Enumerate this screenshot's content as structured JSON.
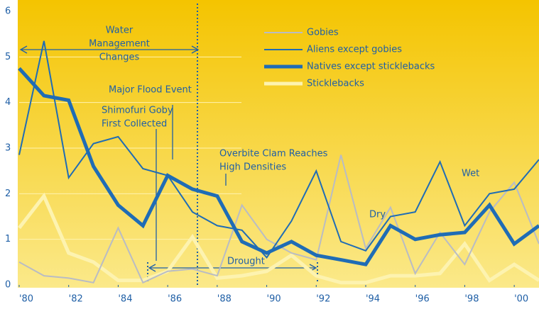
{
  "chart_data": {
    "type": "line",
    "x": [
      1980,
      1981,
      1982,
      1983,
      1984,
      1985,
      1986,
      1987,
      1988,
      1989,
      1990,
      1991,
      1992,
      1993,
      1994,
      1995,
      1996,
      1997,
      1998,
      1999,
      2000,
      2001
    ],
    "xlim": [
      1980,
      2001
    ],
    "xticks": [
      {
        "value": 1980,
        "label": "'80"
      },
      {
        "value": 1982,
        "label": "'82"
      },
      {
        "value": 1984,
        "label": "'84"
      },
      {
        "value": 1986,
        "label": "'86"
      },
      {
        "value": 1988,
        "label": "'88"
      },
      {
        "value": 1990,
        "label": "'90"
      },
      {
        "value": 1992,
        "label": "'92"
      },
      {
        "value": 1994,
        "label": "'94"
      },
      {
        "value": 1996,
        "label": "'96"
      },
      {
        "value": 1998,
        "label": "'98"
      },
      {
        "value": 2000,
        "label": "'00"
      }
    ],
    "ylim": [
      0,
      6
    ],
    "yticks": [
      0,
      1,
      2,
      3,
      4,
      5,
      6
    ],
    "grid": true,
    "series": [
      {
        "name": "Gobies",
        "color": "#b9bcc4",
        "width": 2,
        "values": [
          0.5,
          0.2,
          0.15,
          0.05,
          1.25,
          0.05,
          0.3,
          0.35,
          0.2,
          1.75,
          1.0,
          0.7,
          0.55,
          2.85,
          0.8,
          1.7,
          0.25,
          1.15,
          0.45,
          1.6,
          2.25,
          0.9
        ]
      },
      {
        "name": "Aliens except gobies",
        "color": "#1f6cb5",
        "width": 2,
        "values": [
          2.85,
          5.35,
          2.35,
          3.1,
          3.25,
          2.55,
          2.4,
          1.6,
          1.3,
          1.2,
          0.6,
          1.4,
          2.5,
          0.95,
          0.75,
          1.5,
          1.6,
          2.7,
          1.3,
          2.0,
          2.1,
          2.75
        ]
      },
      {
        "name": "Natives except sticklebacks",
        "color": "#1f6cb5",
        "width": 5,
        "values": [
          4.75,
          4.15,
          4.05,
          2.6,
          1.75,
          1.3,
          2.4,
          2.1,
          1.95,
          0.95,
          0.7,
          0.95,
          0.65,
          0.55,
          0.45,
          1.3,
          1.0,
          1.1,
          1.15,
          1.75,
          0.9,
          1.3
        ]
      },
      {
        "name": "Sticklebacks",
        "color": "#fdf3b0",
        "width": 5,
        "values": [
          1.25,
          1.95,
          0.7,
          0.5,
          0.1,
          0.1,
          0.3,
          1.05,
          0.15,
          0.2,
          0.3,
          0.65,
          0.2,
          0.05,
          0.05,
          0.2,
          0.2,
          0.25,
          0.9,
          0.1,
          0.45,
          0.1
        ]
      }
    ],
    "annotations": [
      [
        "Water",
        "Management",
        "Changes"
      ],
      [
        "Major Flood Event"
      ],
      [
        "Shimofuri Goby",
        "First Collected"
      ],
      [
        "Overbite Clam Reaches",
        "High Densities"
      ],
      [
        "Drought"
      ],
      [
        "Dry"
      ],
      [
        "Wet"
      ]
    ]
  }
}
